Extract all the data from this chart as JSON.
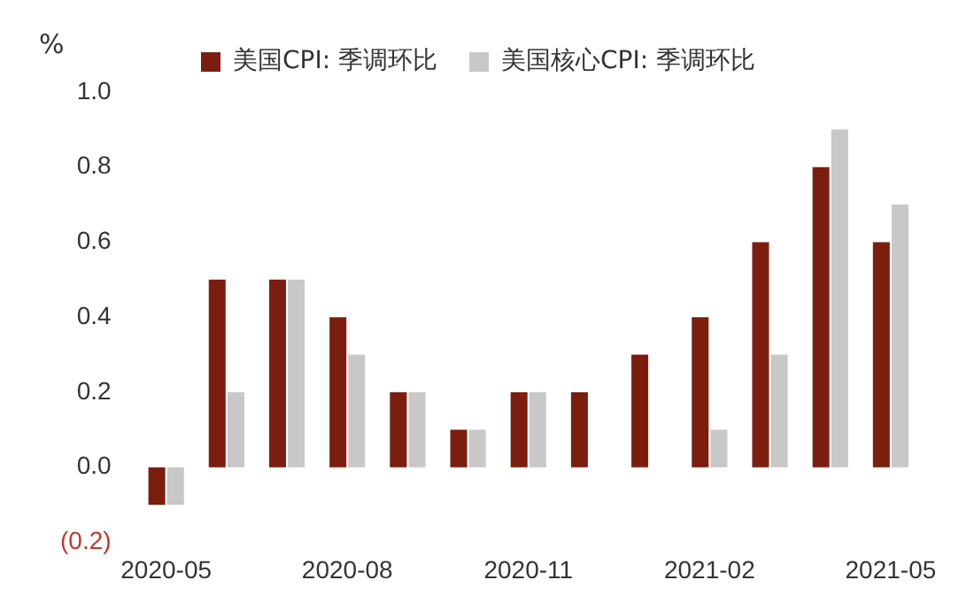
{
  "chart_data": {
    "type": "bar",
    "ylabel": "%",
    "categories": [
      "2020-05",
      null,
      null,
      "2020-08",
      null,
      null,
      "2020-11",
      null,
      null,
      "2021-02",
      null,
      null,
      "2021-05"
    ],
    "series": [
      {
        "name": "美国CPI: 季调环比",
        "color": "#7b1e10",
        "values": [
          -0.1,
          0.5,
          0.5,
          0.4,
          0.2,
          0.1,
          0.2,
          0.2,
          0.3,
          0.4,
          0.6,
          0.8,
          0.6
        ]
      },
      {
        "name": "美国核心CPI: 季调环比",
        "color": "#c8c8c8",
        "values": [
          -0.1,
          0.2,
          0.5,
          0.3,
          0.2,
          0.1,
          0.2,
          0.0,
          0.0,
          0.1,
          0.3,
          0.9,
          0.7
        ]
      }
    ],
    "ylim": [
      -0.2,
      1.0
    ],
    "yticks": [
      {
        "value": -0.2,
        "label": "(0.2)"
      },
      {
        "value": 0,
        "label": "0.0"
      },
      {
        "value": 0.2,
        "label": "0.2"
      },
      {
        "value": 0.4,
        "label": "0.4"
      },
      {
        "value": 0.6,
        "label": "0.6"
      },
      {
        "value": 0.8,
        "label": "0.8"
      },
      {
        "value": 1.0,
        "label": "1.0"
      }
    ],
    "grid": false,
    "legend": "top"
  }
}
